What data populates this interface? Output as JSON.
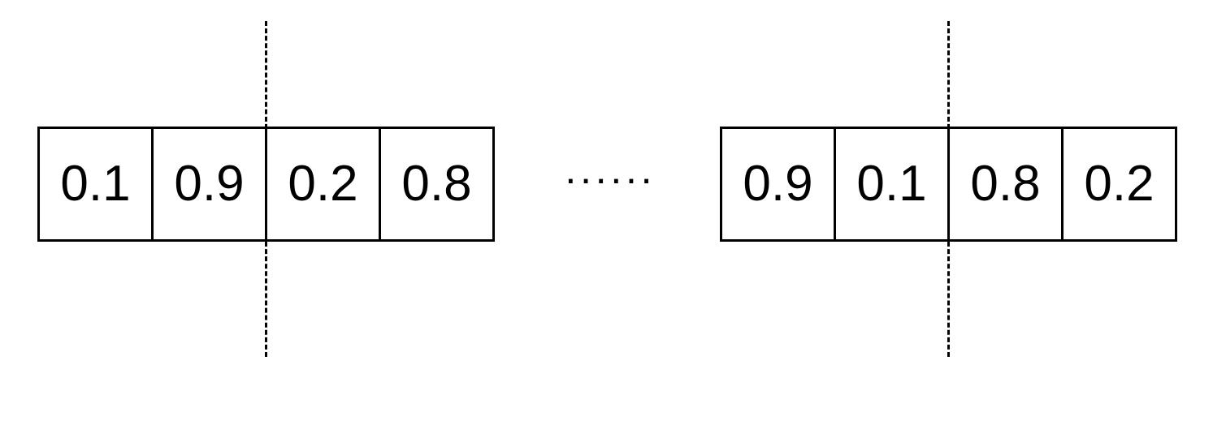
{
  "left_array": {
    "cells": [
      "0.1",
      "0.9",
      "0.2",
      "0.8"
    ]
  },
  "right_array": {
    "cells": [
      "0.9",
      "0.1",
      "0.8",
      "0.2"
    ]
  },
  "ellipsis": "······"
}
